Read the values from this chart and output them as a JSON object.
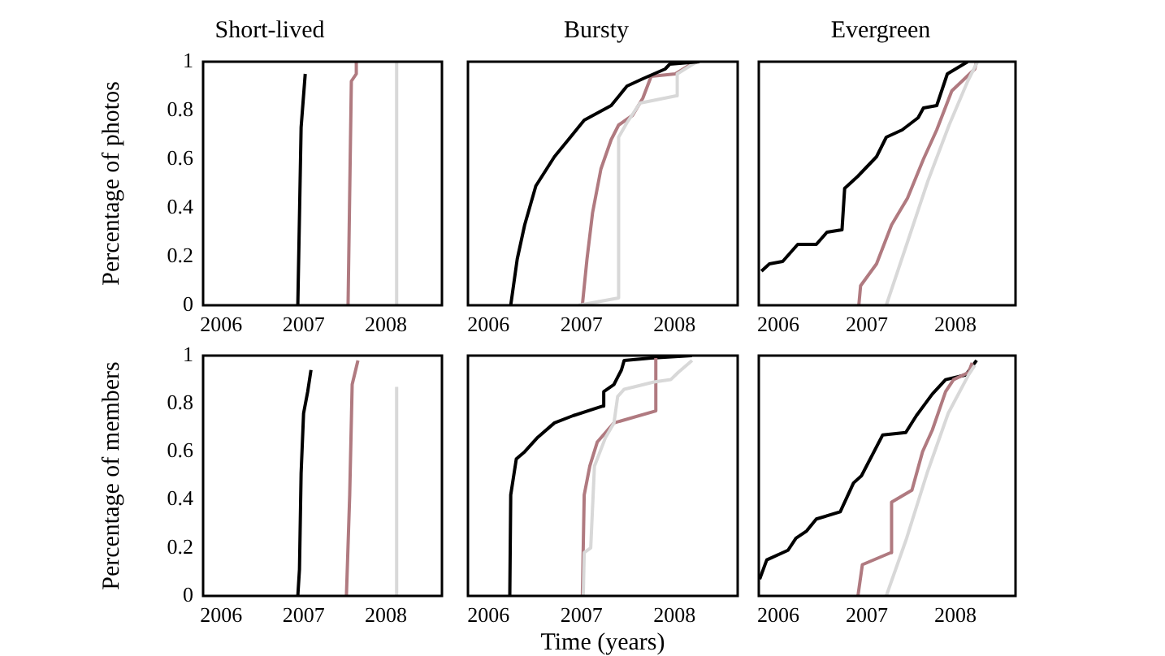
{
  "chart_data": [
    {
      "type": "line",
      "title": "Short-lived",
      "ylabel": "Percentage of photos",
      "xlim": [
        2005.78,
        2008.68
      ],
      "xticks": [
        2006,
        2007,
        2008
      ],
      "ylim": [
        0,
        1
      ],
      "yticks": [
        0,
        0.2,
        0.4,
        0.6,
        0.8,
        1
      ],
      "series": [
        {
          "color": "#000000",
          "x": [
            2006.93,
            2006.97,
            2007.02
          ],
          "values": [
            0,
            0.73,
            0.95
          ]
        },
        {
          "color": "#b07a80",
          "x": [
            2007.54,
            2007.58,
            2007.64,
            2007.64
          ],
          "values": [
            0,
            0.92,
            0.95,
            1
          ]
        },
        {
          "color": "#d8d8d8",
          "x": [
            2008.13,
            2008.13
          ],
          "values": [
            0,
            1
          ]
        }
      ]
    },
    {
      "type": "line",
      "title": "Bursty",
      "tick_labels": "x",
      "xlim": [
        2005.78,
        2008.68
      ],
      "xticks": [
        2006,
        2007,
        2008
      ],
      "ylim": [
        0,
        1
      ],
      "yticks": [
        0,
        0.2,
        0.4,
        0.6,
        0.8,
        1
      ],
      "series": [
        {
          "color": "#000000",
          "x": [
            2006.24,
            2006.31,
            2006.39,
            2006.51,
            2006.71,
            2006.86,
            2007.03,
            2007.32,
            2007.49,
            2007.66,
            2007.9,
            2007.95,
            2008.27
          ],
          "values": [
            0,
            0.19,
            0.33,
            0.49,
            0.61,
            0.68,
            0.76,
            0.82,
            0.9,
            0.93,
            0.97,
            0.99,
            1
          ]
        },
        {
          "color": "#d8d8d8",
          "x": [
            2006.97,
            2007.4,
            2007.4,
            2007.49,
            2007.63,
            2008.02,
            2008.03,
            2008.24
          ],
          "values": [
            0,
            0.03,
            0.69,
            0.75,
            0.83,
            0.86,
            0.95,
            1
          ]
        },
        {
          "color": "#b07a80",
          "x": [
            2007.01,
            2007.06,
            2007.12,
            2007.21,
            2007.32,
            2007.4,
            2007.55,
            2007.66,
            2007.75,
            2008.01,
            2008.18,
            2008.25
          ],
          "values": [
            0,
            0.19,
            0.38,
            0.56,
            0.68,
            0.74,
            0.78,
            0.85,
            0.94,
            0.95,
            0.99,
            1
          ]
        }
      ]
    },
    {
      "type": "line",
      "title": "Evergreen",
      "tick_labels": "x",
      "xlim": [
        2005.78,
        2008.68
      ],
      "xticks": [
        2006,
        2007,
        2008
      ],
      "ylim": [
        0,
        1
      ],
      "yticks": [
        0,
        0.2,
        0.4,
        0.6,
        0.8,
        1
      ],
      "series": [
        {
          "color": "#d8d8d8",
          "x": [
            2007.22,
            2007.46,
            2007.69,
            2007.93,
            2008.14,
            2008.25
          ],
          "values": [
            0,
            0.26,
            0.51,
            0.74,
            0.92,
            1
          ]
        },
        {
          "color": "#b07a80",
          "x": [
            2006.91,
            2006.93,
            2007.11,
            2007.28,
            2007.46,
            2007.64,
            2007.79,
            2007.96,
            2008.22,
            2008.24
          ],
          "values": [
            0,
            0.08,
            0.17,
            0.33,
            0.44,
            0.6,
            0.72,
            0.88,
            0.97,
            1
          ]
        },
        {
          "color": "#000000",
          "x": [
            2005.81,
            2005.9,
            2006.05,
            2006.22,
            2006.43,
            2006.55,
            2006.72,
            2006.75,
            2006.9,
            2007.11,
            2007.22,
            2007.4,
            2007.58,
            2007.64,
            2007.79,
            2007.91,
            2008.14
          ],
          "values": [
            0.14,
            0.17,
            0.18,
            0.25,
            0.25,
            0.3,
            0.31,
            0.48,
            0.53,
            0.61,
            0.69,
            0.72,
            0.77,
            0.81,
            0.82,
            0.95,
            1
          ]
        }
      ]
    },
    {
      "type": "line",
      "ylabel": "Percentage of members",
      "xlim": [
        2005.78,
        2008.68
      ],
      "xticks": [
        2006,
        2007,
        2008
      ],
      "ylim": [
        0,
        1
      ],
      "yticks": [
        0,
        0.2,
        0.4,
        0.6,
        0.8,
        1
      ],
      "series": [
        {
          "color": "#000000",
          "x": [
            2006.93,
            2006.95,
            2006.97,
            2007.0,
            2007.05,
            2007.09
          ],
          "values": [
            0,
            0.11,
            0.51,
            0.76,
            0.85,
            0.94
          ]
        },
        {
          "color": "#b07a80",
          "x": [
            2007.52,
            2007.56,
            2007.59,
            2007.66
          ],
          "values": [
            0,
            0.42,
            0.88,
            0.98
          ]
        },
        {
          "color": "#d8d8d8",
          "x": [
            2008.13,
            2008.13
          ],
          "values": [
            0,
            0.87
          ]
        }
      ]
    },
    {
      "type": "line",
      "xlabel": "Time (years)",
      "tick_labels": "x",
      "xlim": [
        2005.78,
        2008.68
      ],
      "xticks": [
        2006,
        2007,
        2008
      ],
      "ylim": [
        0,
        1
      ],
      "yticks": [
        0,
        0.2,
        0.4,
        0.6,
        0.8,
        1
      ],
      "series": [
        {
          "color": "#d8d8d8",
          "x": [
            2007.02,
            2007.03,
            2007.1,
            2007.14,
            2007.26,
            2007.35,
            2007.39,
            2007.46,
            2007.78,
            2007.96,
            2008.04,
            2008.19
          ],
          "values": [
            0,
            0.18,
            0.2,
            0.54,
            0.66,
            0.72,
            0.83,
            0.86,
            0.89,
            0.9,
            0.93,
            0.98
          ]
        },
        {
          "color": "#b07a80",
          "x": [
            2007.01,
            2007.03,
            2007.09,
            2007.17,
            2007.35,
            2007.8,
            2007.8
          ],
          "values": [
            0,
            0.42,
            0.54,
            0.64,
            0.72,
            0.77,
            0.99
          ]
        },
        {
          "color": "#000000",
          "x": [
            2006.23,
            2006.24,
            2006.3,
            2006.39,
            2006.53,
            2006.71,
            2006.91,
            2007.23,
            2007.24,
            2007.35,
            2007.43,
            2007.46,
            2007.75,
            2008.19
          ],
          "values": [
            0,
            0.42,
            0.57,
            0.6,
            0.66,
            0.72,
            0.75,
            0.79,
            0.85,
            0.88,
            0.94,
            0.98,
            0.99,
            1
          ]
        }
      ]
    },
    {
      "type": "line",
      "tick_labels": "x",
      "xlim": [
        2005.78,
        2008.68
      ],
      "xticks": [
        2006,
        2007,
        2008
      ],
      "ylim": [
        0,
        1
      ],
      "yticks": [
        0,
        0.2,
        0.4,
        0.6,
        0.8,
        1
      ],
      "series": [
        {
          "color": "#d8d8d8",
          "x": [
            2007.22,
            2007.45,
            2007.68,
            2007.92,
            2008.15,
            2008.22
          ],
          "values": [
            0,
            0.24,
            0.51,
            0.76,
            0.92,
            0.96
          ]
        },
        {
          "color": "#b07a80",
          "x": [
            2006.9,
            2006.95,
            2007.27,
            2007.28,
            2007.51,
            2007.63,
            2007.74,
            2007.89,
            2007.98,
            2008.15,
            2008.19
          ],
          "values": [
            0,
            0.13,
            0.18,
            0.39,
            0.44,
            0.6,
            0.69,
            0.85,
            0.9,
            0.93,
            0.97
          ]
        },
        {
          "color": "#000000",
          "x": [
            2005.79,
            2005.87,
            2006.11,
            2006.2,
            2006.32,
            2006.43,
            2006.7,
            2006.85,
            2006.94,
            2007.18,
            2007.44,
            2007.56,
            2007.74,
            2007.89,
            2008.12,
            2008.24
          ],
          "values": [
            0.07,
            0.15,
            0.19,
            0.24,
            0.27,
            0.32,
            0.35,
            0.47,
            0.5,
            0.67,
            0.68,
            0.75,
            0.84,
            0.9,
            0.92,
            0.98
          ]
        }
      ]
    }
  ]
}
